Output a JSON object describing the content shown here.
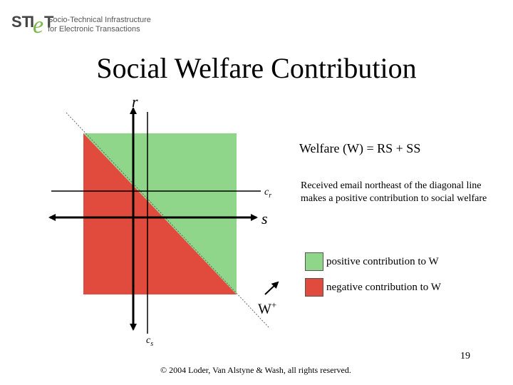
{
  "logo": {
    "wordmark": "STIeT",
    "line1": "Socio-Technical Infrastructure",
    "line2": "for Electronic Transactions"
  },
  "title": "Social Welfare Contribution",
  "axes": {
    "r": "r",
    "s": "s",
    "cr": "cr",
    "cs": "cs"
  },
  "wplus": "W+",
  "welfare_equation": "Welfare (W) = RS + SS",
  "note": "Received email northeast of the diagonal line makes a positive contribution to social welfare",
  "legend": {
    "positive": "positive contribution to W",
    "negative": "negative contribution to W"
  },
  "colors": {
    "positive": "#8fd58a",
    "negative": "#e14b3d"
  },
  "copyright": "© 2004 Loder, Van Alstyne & Wash, all rights reserved.",
  "page_number": "19"
}
